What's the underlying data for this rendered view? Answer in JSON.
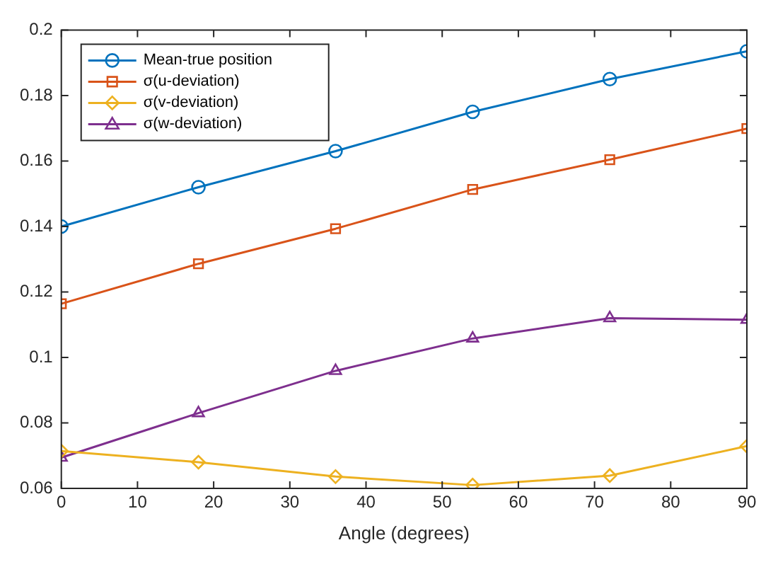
{
  "chart_data": {
    "type": "line",
    "xlabel": "Angle (degrees)",
    "x": [
      0,
      18,
      36,
      54,
      72,
      90
    ],
    "xlim": [
      0,
      90
    ],
    "xticks": [
      0,
      10,
      20,
      30,
      40,
      50,
      60,
      70,
      80,
      90
    ],
    "ylim": [
      0.06,
      0.2
    ],
    "yticks": [
      0.06,
      0.08,
      0.1,
      0.12,
      0.14,
      0.16,
      0.18,
      0.2
    ],
    "grid": false,
    "legend": "top left",
    "line_style": "solid",
    "series": [
      {
        "name": "Mean-true position",
        "color": "#0072bd",
        "marker": "circle",
        "values": [
          0.14,
          0.152,
          0.163,
          0.175,
          0.185,
          0.1935
        ]
      },
      {
        "name": "σ(u-deviation)",
        "color": "#d95319",
        "marker": "square",
        "values": [
          0.1164,
          0.1286,
          0.1393,
          0.1513,
          0.1604,
          0.1699
        ]
      },
      {
        "name": "σ(v-deviation)",
        "color": "#edb120",
        "marker": "diamond",
        "values": [
          0.0714,
          0.068,
          0.0636,
          0.061,
          0.0639,
          0.0729
        ]
      },
      {
        "name": "σ(w-deviation)",
        "color": "#7e2f8e",
        "marker": "triangle",
        "values": [
          0.0694,
          0.083,
          0.0959,
          0.1058,
          0.112,
          0.1115
        ]
      }
    ]
  }
}
